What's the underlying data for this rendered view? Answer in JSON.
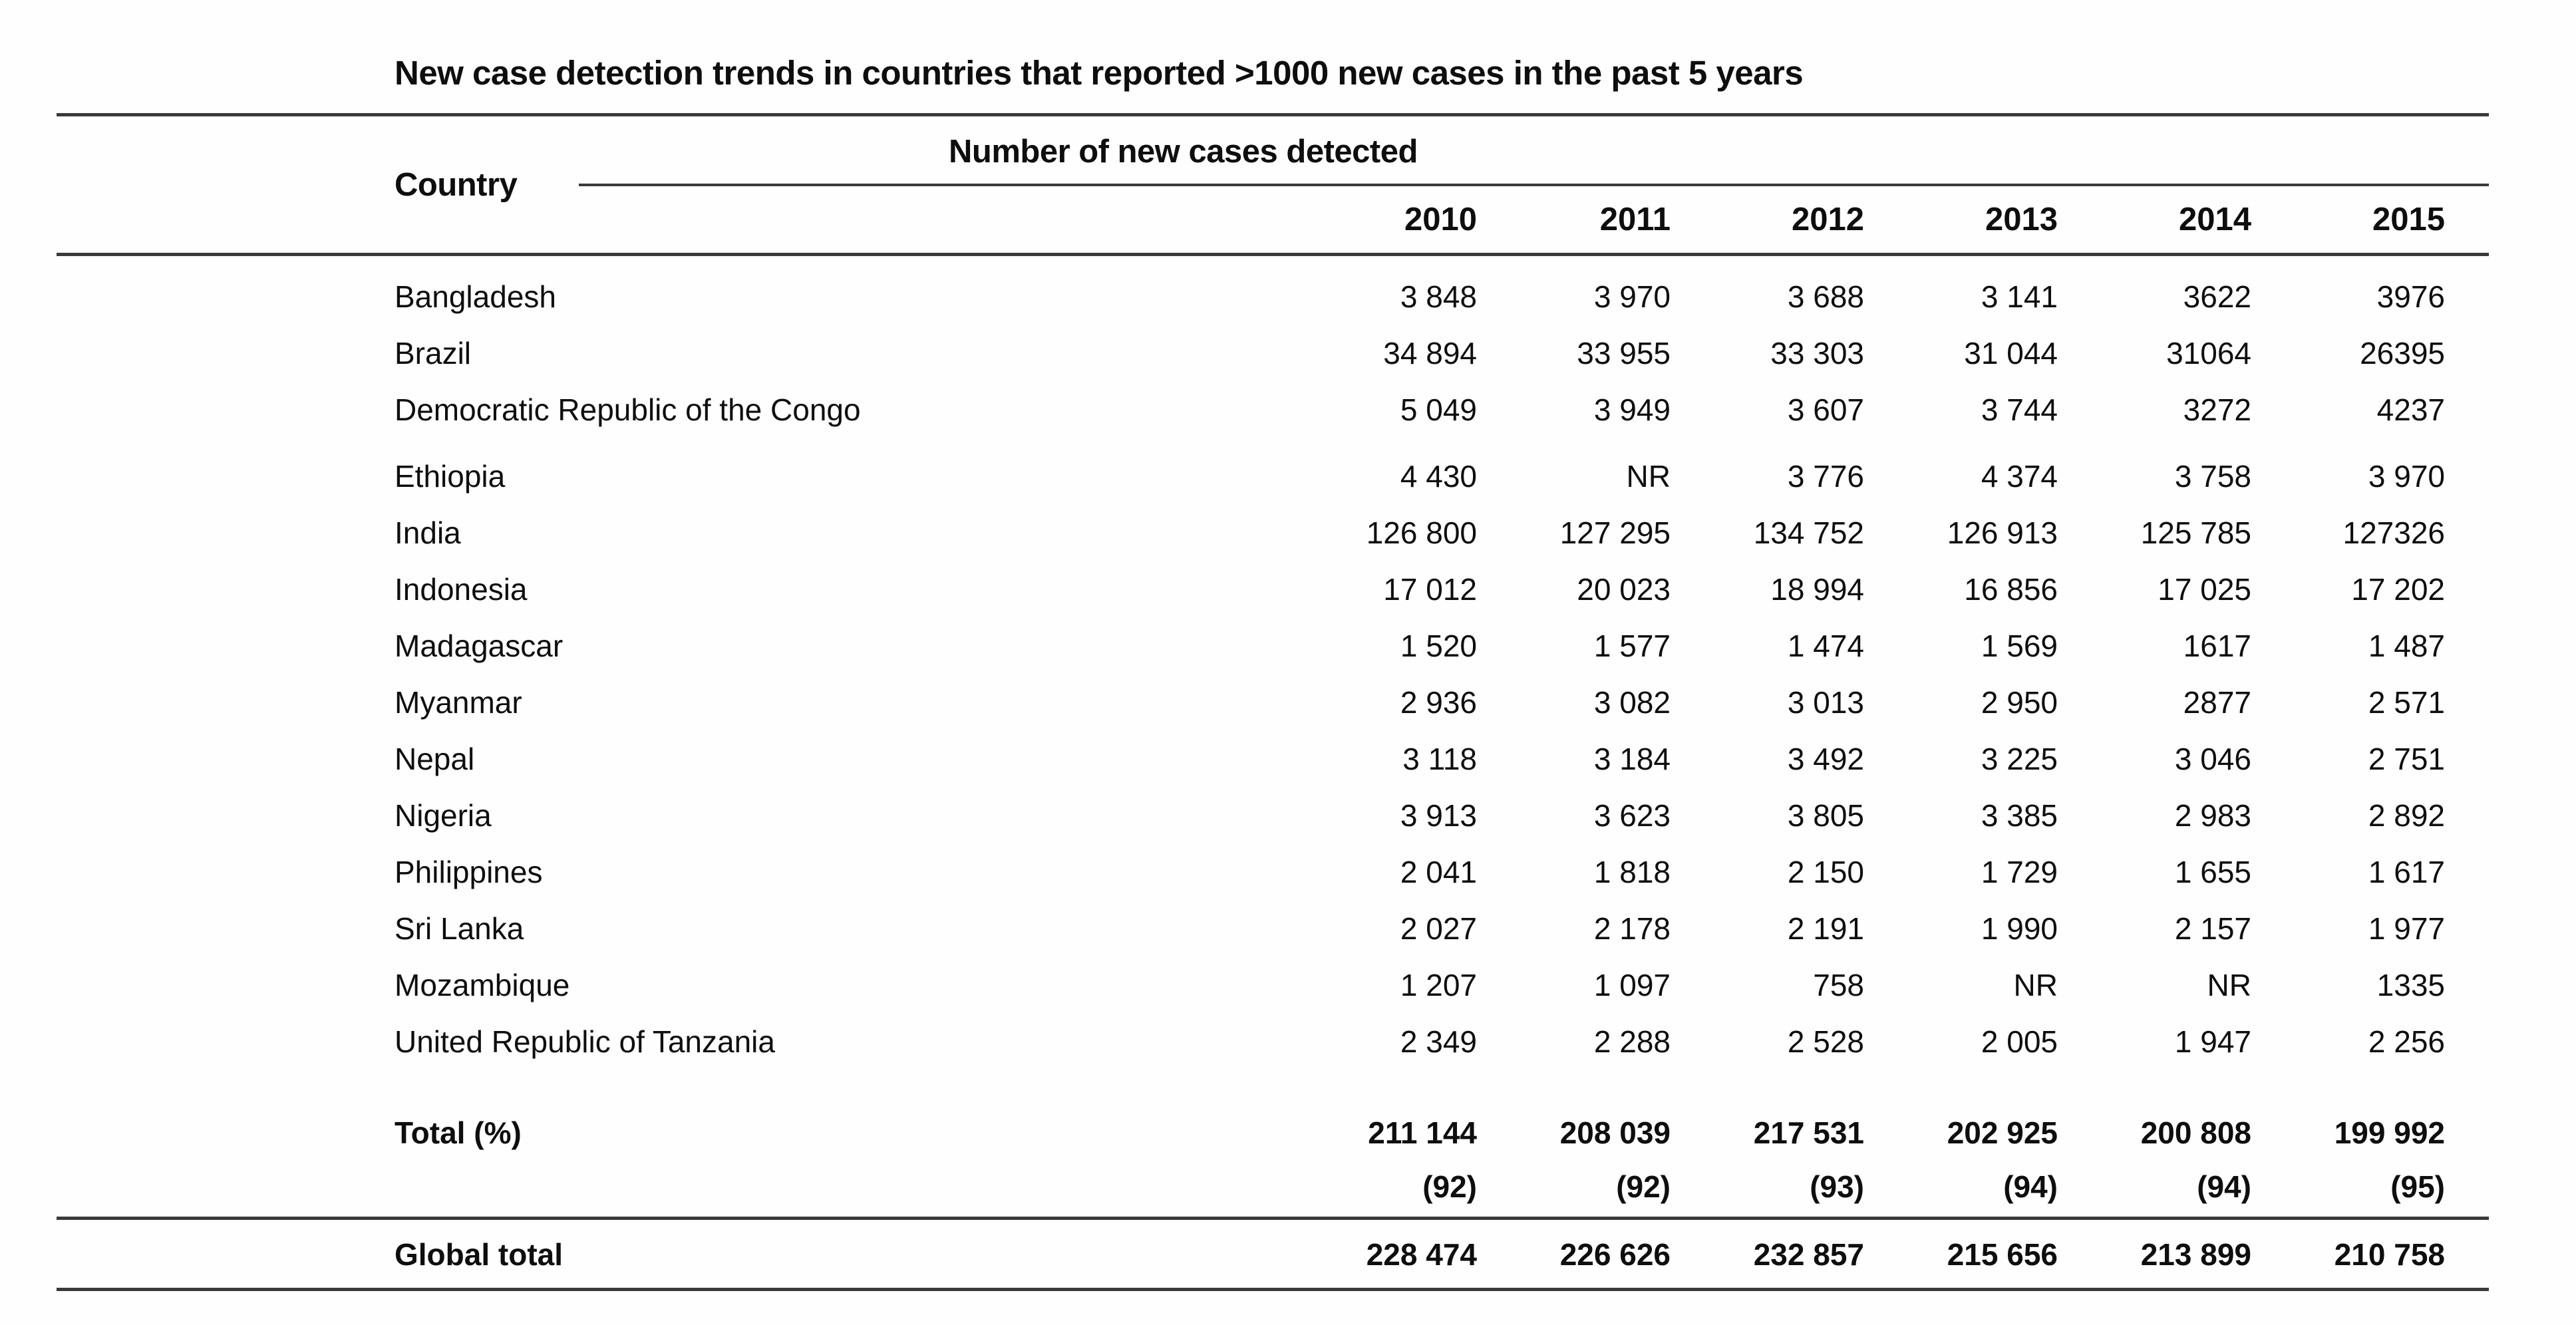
{
  "title": "New case detection trends in countries that reported >1000 new cases in the past 5 years",
  "table": {
    "country_header": "Country",
    "group_header": "Number of new cases detected",
    "years": [
      "2010",
      "2011",
      "2012",
      "2013",
      "2014",
      "2015"
    ],
    "rows": [
      {
        "country": "Bangladesh",
        "values": [
          "3 848",
          "3 970",
          "3 688",
          "3 141",
          "3622",
          "3976"
        ]
      },
      {
        "country": "Brazil",
        "values": [
          "34 894",
          "33 955",
          "33 303",
          "31 044",
          "31064",
          "26395"
        ]
      },
      {
        "country": "Democratic Republic of the Congo",
        "values": [
          "5 049",
          "3 949",
          "3 607",
          "3 744",
          "3272",
          "4237"
        ]
      },
      {
        "country": "Ethiopia",
        "values": [
          "4 430",
          "NR",
          "3 776",
          "4 374",
          "3 758",
          "3 970"
        ]
      },
      {
        "country": "India",
        "values": [
          "126 800",
          "127 295",
          "134 752",
          "126 913",
          "125 785",
          "127326"
        ]
      },
      {
        "country": "Indonesia",
        "values": [
          "17 012",
          "20 023",
          "18 994",
          "16 856",
          "17 025",
          "17 202"
        ]
      },
      {
        "country": "Madagascar",
        "values": [
          "1 520",
          "1 577",
          "1 474",
          "1 569",
          "1617",
          "1 487"
        ]
      },
      {
        "country": "Myanmar",
        "values": [
          "2 936",
          "3 082",
          "3 013",
          "2 950",
          "2877",
          "2 571"
        ]
      },
      {
        "country": "Nepal",
        "values": [
          "3 118",
          "3 184",
          "3 492",
          "3 225",
          "3 046",
          "2 751"
        ]
      },
      {
        "country": "Nigeria",
        "values": [
          "3 913",
          "3 623",
          "3 805",
          "3 385",
          "2 983",
          "2 892"
        ]
      },
      {
        "country": "Philippines",
        "values": [
          "2 041",
          "1 818",
          "2 150",
          "1 729",
          "1 655",
          "1 617"
        ]
      },
      {
        "country": "Sri Lanka",
        "values": [
          "2 027",
          "2 178",
          "2 191",
          "1 990",
          "2 157",
          "1 977"
        ]
      },
      {
        "country": "Mozambique",
        "values": [
          "1 207",
          "1 097",
          "758",
          "NR",
          "NR",
          "1335"
        ]
      },
      {
        "country": "United Republic of Tanzania",
        "values": [
          "2 349",
          "2 288",
          "2 528",
          "2 005",
          "1 947",
          "2 256"
        ]
      }
    ],
    "total_row": {
      "label": "Total (%)",
      "values": [
        "211 144",
        "208 039",
        "217 531",
        "202 925",
        "200 808",
        "199 992"
      ]
    },
    "percent_row": {
      "values": [
        "(92)",
        "(92)",
        "(93)",
        "(94)",
        "(94)",
        "(95)"
      ]
    },
    "global_row": {
      "label": "Global total",
      "values": [
        "228 474",
        "226 626",
        "232 857",
        "215 656",
        "213 899",
        "210 758"
      ]
    }
  },
  "colors": {
    "text": "#0e0e0e",
    "rule": "#3a3a3a",
    "background": "#fefefe"
  }
}
